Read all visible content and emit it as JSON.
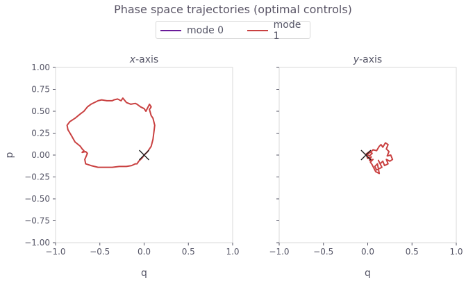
{
  "chart_data": {
    "type": "line",
    "title": "Phase space trajectories (optimal controls)",
    "legend": [
      {
        "name": "mode 0",
        "color": "#6a1b9a"
      },
      {
        "name": "mode 1",
        "color": "#c94040"
      }
    ],
    "legend_position": "top-center",
    "axis_color": "#d8d8d8",
    "tick_color": "#555566",
    "panels": [
      {
        "id": "x",
        "title_var": "x",
        "title_suffix": "-axis",
        "xlabel": "q",
        "ylabel": "p",
        "xlim": [
          -1.0,
          1.0
        ],
        "ylim": [
          -1.0,
          1.0
        ],
        "xticks": [
          -1.0,
          -0.5,
          0.0,
          0.5,
          1.0
        ],
        "yticks": [
          -1.0,
          -0.75,
          -0.5,
          -0.25,
          0.0,
          0.25,
          0.5,
          0.75,
          1.0
        ],
        "xtick_labels": [
          "−1.0",
          "−0.5",
          "0.0",
          "0.5",
          "1.0"
        ],
        "ytick_labels": [
          "−1.00",
          "−0.75",
          "−0.50",
          "−0.25",
          "0.00",
          "0.25",
          "0.50",
          "0.75",
          "1.00"
        ],
        "grid": false,
        "marker": {
          "q": 0.0,
          "p": 0.0,
          "symbol": "x",
          "color": "#222222"
        },
        "series": [
          {
            "name": "mode 1",
            "color": "#c94040",
            "q": [
              0.0,
              0.04,
              0.08,
              0.1,
              0.12,
              0.1,
              0.08,
              0.06,
              0.08,
              0.06,
              0.02,
              0.0,
              -0.04,
              -0.08,
              -0.1,
              -0.15,
              -0.2,
              -0.24,
              -0.26,
              -0.3,
              -0.34,
              -0.36,
              -0.42,
              -0.48,
              -0.52,
              -0.56,
              -0.6,
              -0.64,
              -0.68,
              -0.72,
              -0.78,
              -0.84,
              -0.87,
              -0.86,
              -0.82,
              -0.78,
              -0.72,
              -0.7,
              -0.68,
              -0.7,
              -0.66,
              -0.64,
              -0.67,
              -0.66,
              -0.6,
              -0.52,
              -0.44,
              -0.36,
              -0.28,
              -0.2,
              -0.14,
              -0.1,
              -0.08,
              -0.06,
              -0.04,
              -0.02,
              0.0
            ],
            "p": [
              0.0,
              0.04,
              0.1,
              0.18,
              0.34,
              0.42,
              0.45,
              0.52,
              0.55,
              0.58,
              0.5,
              0.53,
              0.55,
              0.58,
              0.59,
              0.58,
              0.6,
              0.65,
              0.62,
              0.64,
              0.63,
              0.62,
              0.62,
              0.63,
              0.62,
              0.6,
              0.58,
              0.55,
              0.5,
              0.47,
              0.42,
              0.38,
              0.34,
              0.29,
              0.22,
              0.15,
              0.1,
              0.07,
              0.05,
              0.03,
              0.04,
              0.02,
              -0.05,
              -0.1,
              -0.12,
              -0.14,
              -0.14,
              -0.14,
              -0.13,
              -0.13,
              -0.12,
              -0.1,
              -0.1,
              -0.07,
              -0.05,
              -0.03,
              0.0
            ]
          }
        ]
      },
      {
        "id": "y",
        "title_var": "y",
        "title_suffix": "-axis",
        "xlabel": "q",
        "ylabel": "",
        "xlim": [
          -1.0,
          1.0
        ],
        "ylim": [
          -1.0,
          1.0
        ],
        "xticks": [
          -1.0,
          -0.5,
          0.0,
          0.5,
          1.0
        ],
        "yticks": [
          -1.0,
          -0.75,
          -0.5,
          -0.25,
          0.0,
          0.25,
          0.5,
          0.75,
          1.0
        ],
        "xtick_labels": [
          "−1.0",
          "−0.5",
          "0.0",
          "0.5",
          "1.0"
        ],
        "ytick_labels": [],
        "grid": false,
        "marker": {
          "q": -0.02,
          "p": 0.0,
          "symbol": "x",
          "color": "#222222"
        },
        "series": [
          {
            "name": "mode 1",
            "color": "#c94040",
            "q": [
              -0.02,
              0.03,
              0.06,
              0.1,
              0.13,
              0.15,
              0.17,
              0.2,
              0.23,
              0.21,
              0.24,
              0.22,
              0.26,
              0.28,
              0.25,
              0.21,
              0.23,
              0.19,
              0.17,
              0.14,
              0.12,
              0.16,
              0.1,
              0.08,
              0.11,
              0.13,
              0.09,
              0.07,
              0.05,
              0.03,
              0.06,
              0.02,
              0.04,
              0.0,
              -0.02,
              0.02,
              0.05,
              0.02,
              0.0
            ],
            "p": [
              0.0,
              0.03,
              0.06,
              0.05,
              0.1,
              0.12,
              0.09,
              0.14,
              0.12,
              0.07,
              0.04,
              -0.01,
              0.0,
              -0.05,
              -0.07,
              -0.05,
              -0.1,
              -0.12,
              -0.07,
              -0.1,
              -0.06,
              -0.14,
              -0.17,
              -0.13,
              -0.1,
              -0.21,
              -0.19,
              -0.15,
              -0.11,
              -0.08,
              -0.05,
              -0.06,
              -0.02,
              -0.04,
              0.01,
              0.04,
              0.02,
              -0.01,
              0.0
            ]
          }
        ]
      }
    ]
  }
}
